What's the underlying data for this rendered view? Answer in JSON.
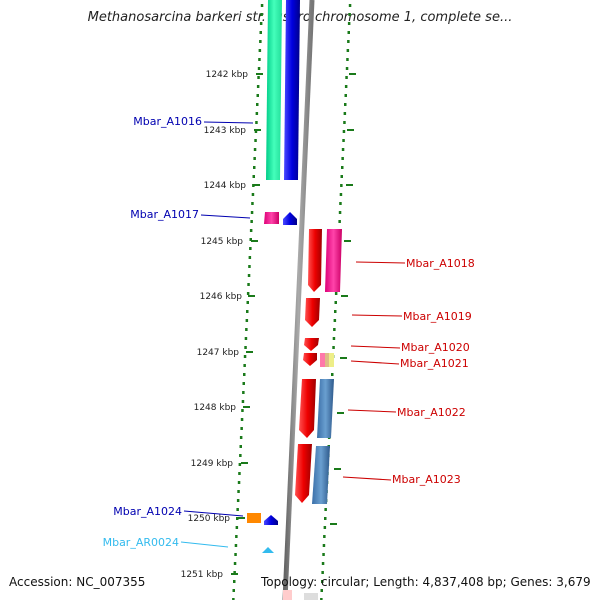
{
  "title": "Methanosarcina barkeri str. fusaro chromosome 1, complete se...",
  "footer": {
    "accession": "Accession: NC_007355",
    "topology": "Topology: circular; Length: 4,837,408 bp; Genes: 3,679"
  },
  "colors": {
    "backbone": "#8a8a8a",
    "tick_marks": "#1a7a1a",
    "forward_label": "#0000b0",
    "reverse_label": "#cc0000",
    "rna_label": "#33bbee"
  },
  "scale_labels": [
    "1242 kbp",
    "1243 kbp",
    "1244 kbp",
    "1245 kbp",
    "1246 kbp",
    "1247 kbp",
    "1248 kbp",
    "1249 kbp",
    "1250 kbp",
    "1251 kbp"
  ],
  "forward_genes": [
    {
      "name": "Mbar_A1016",
      "color": "#0000dd"
    },
    {
      "name": "Mbar_A1017",
      "color": "#0000dd"
    },
    {
      "name": "Mbar_A1024",
      "color": "#0000dd"
    },
    {
      "name": "Mbar_AR0024",
      "color": "#33bbee"
    }
  ],
  "reverse_genes": [
    {
      "name": "Mbar_A1018",
      "color": "#ee0000"
    },
    {
      "name": "Mbar_A1019",
      "color": "#ee0000"
    },
    {
      "name": "Mbar_A1020",
      "color": "#ee0000"
    },
    {
      "name": "Mbar_A1021",
      "color": "#ee0000"
    },
    {
      "name": "Mbar_A1022",
      "color": "#ee0000"
    },
    {
      "name": "Mbar_A1023",
      "color": "#ee0000"
    }
  ]
}
